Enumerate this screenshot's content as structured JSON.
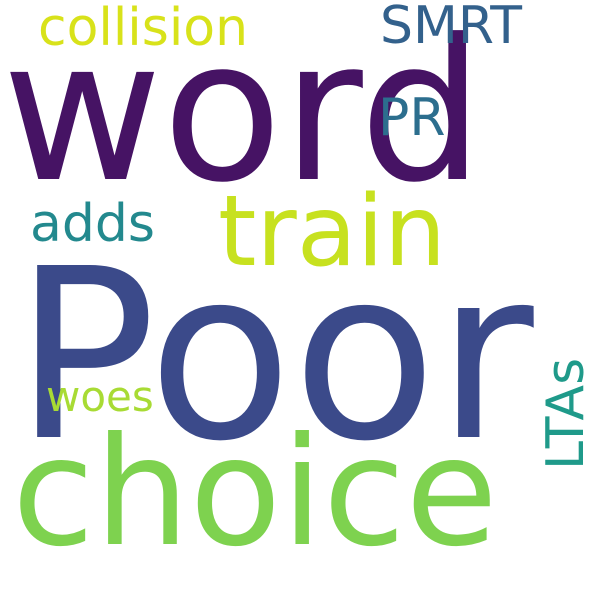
{
  "words": {
    "poor": {
      "text": "Poor",
      "color": "#3b4a8a"
    },
    "word": {
      "text": "word",
      "color": "#461364"
    },
    "choice": {
      "text": "choice",
      "color": "#7ed24f"
    },
    "train": {
      "text": "train",
      "color": "#c7e11f"
    },
    "collision": {
      "text": "collision",
      "color": "#d8e21a"
    },
    "smrt": {
      "text": "SMRT",
      "color": "#33618c"
    },
    "pr": {
      "text": "PR",
      "color": "#2c6e8e"
    },
    "adds": {
      "text": "adds",
      "color": "#23898e"
    },
    "woes": {
      "text": "woes",
      "color": "#a8db34"
    },
    "ltas": {
      "text": "LTAs",
      "color": "#1f9a8a"
    }
  }
}
